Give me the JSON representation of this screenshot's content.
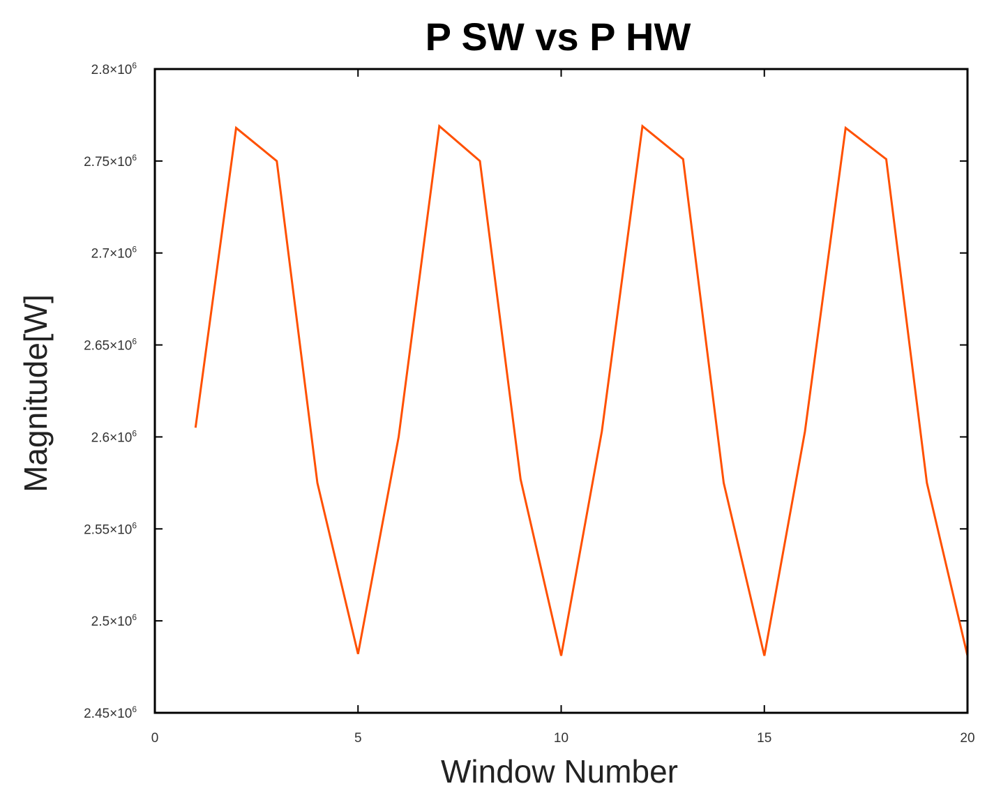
{
  "chart_data": {
    "type": "line",
    "title": "P SW vs P HW",
    "xlabel": "Window Number",
    "ylabel": "Magnitude[W]",
    "xlim": [
      0,
      20
    ],
    "ylim": [
      2450000,
      2800000
    ],
    "x_ticks": [
      {
        "value": 0,
        "label": "0"
      },
      {
        "value": 5,
        "label": "5"
      },
      {
        "value": 10,
        "label": "10"
      },
      {
        "value": 15,
        "label": "15"
      },
      {
        "value": 20,
        "label": "20"
      }
    ],
    "y_ticks": [
      {
        "value": 2450000,
        "mantissa": "2.45×10",
        "exponent": "6"
      },
      {
        "value": 2500000,
        "mantissa": "2.5×10",
        "exponent": "6"
      },
      {
        "value": 2550000,
        "mantissa": "2.55×10",
        "exponent": "6"
      },
      {
        "value": 2600000,
        "mantissa": "2.6×10",
        "exponent": "6"
      },
      {
        "value": 2650000,
        "mantissa": "2.65×10",
        "exponent": "6"
      },
      {
        "value": 2700000,
        "mantissa": "2.7×10",
        "exponent": "6"
      },
      {
        "value": 2750000,
        "mantissa": "2.75×10",
        "exponent": "6"
      },
      {
        "value": 2800000,
        "mantissa": "2.8×10",
        "exponent": "6"
      }
    ],
    "grid": false,
    "series": [
      {
        "color": "#ff5000",
        "x": [
          1,
          2,
          3,
          4,
          5,
          6,
          7,
          8,
          9,
          10,
          11,
          12,
          13,
          14,
          15,
          16,
          17,
          18,
          19,
          20
        ],
        "y": [
          2605000,
          2768000,
          2750000,
          2575000,
          2482000,
          2600000,
          2769000,
          2750000,
          2577000,
          2481000,
          2603000,
          2769000,
          2751000,
          2575000,
          2481000,
          2603000,
          2768000,
          2751000,
          2575000,
          2481000
        ]
      }
    ]
  }
}
